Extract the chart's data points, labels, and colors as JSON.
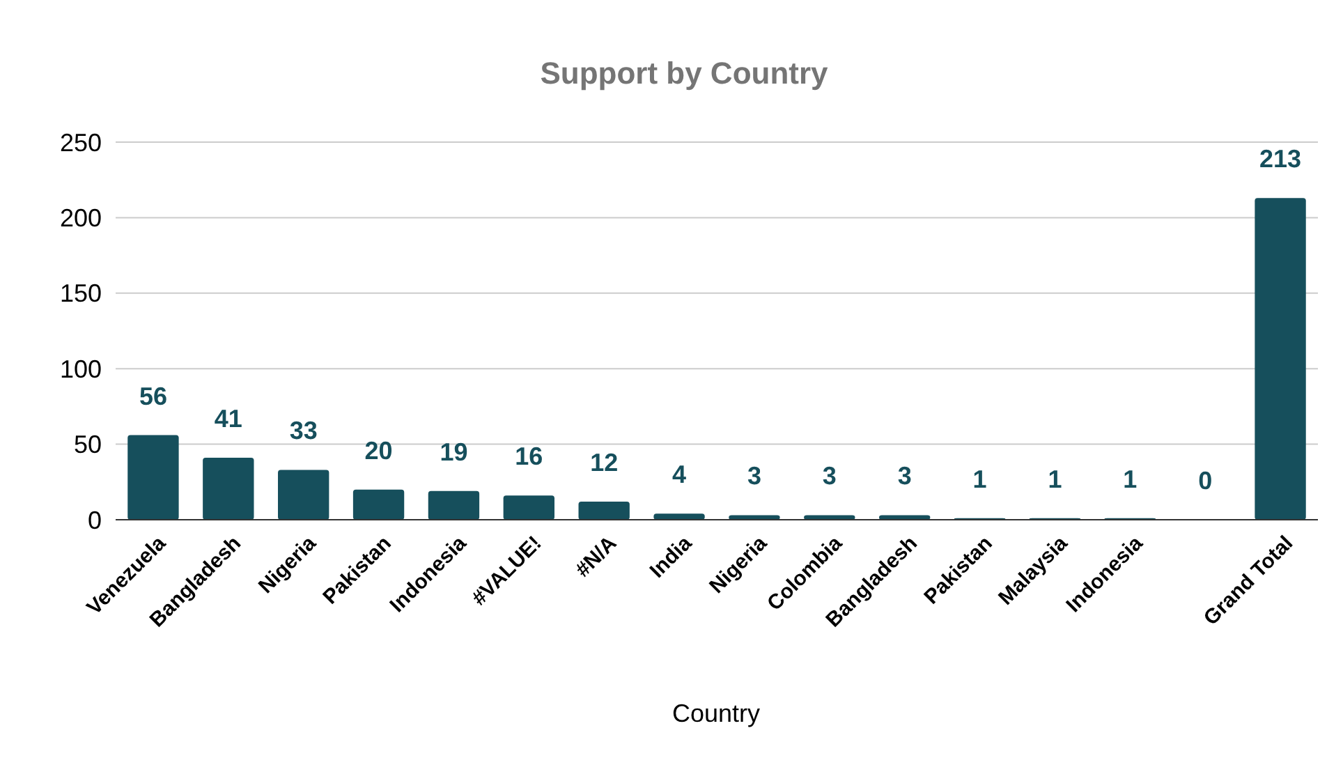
{
  "chart_data": {
    "type": "bar",
    "title": "Support by Country",
    "xlabel": "Country",
    "categories": [
      "Venezuela",
      "Bangladesh",
      "Nigeria",
      "Pakistan",
      "Indonesia",
      "#VALUE!",
      "#N/A",
      "India",
      "Nigeria",
      "Colombia",
      "Bangladesh",
      "Pakistan",
      "Malaysia",
      "Indonesia",
      null,
      "Grand Total"
    ],
    "values": [
      56,
      41,
      33,
      20,
      19,
      16,
      12,
      4,
      3,
      3,
      3,
      1,
      1,
      1,
      0,
      213
    ],
    "color": "#164f5c",
    "ylim": [
      0,
      250
    ],
    "yticks": [
      0,
      50,
      100,
      150,
      200,
      250
    ],
    "grid": "y",
    "data_labels": true
  }
}
